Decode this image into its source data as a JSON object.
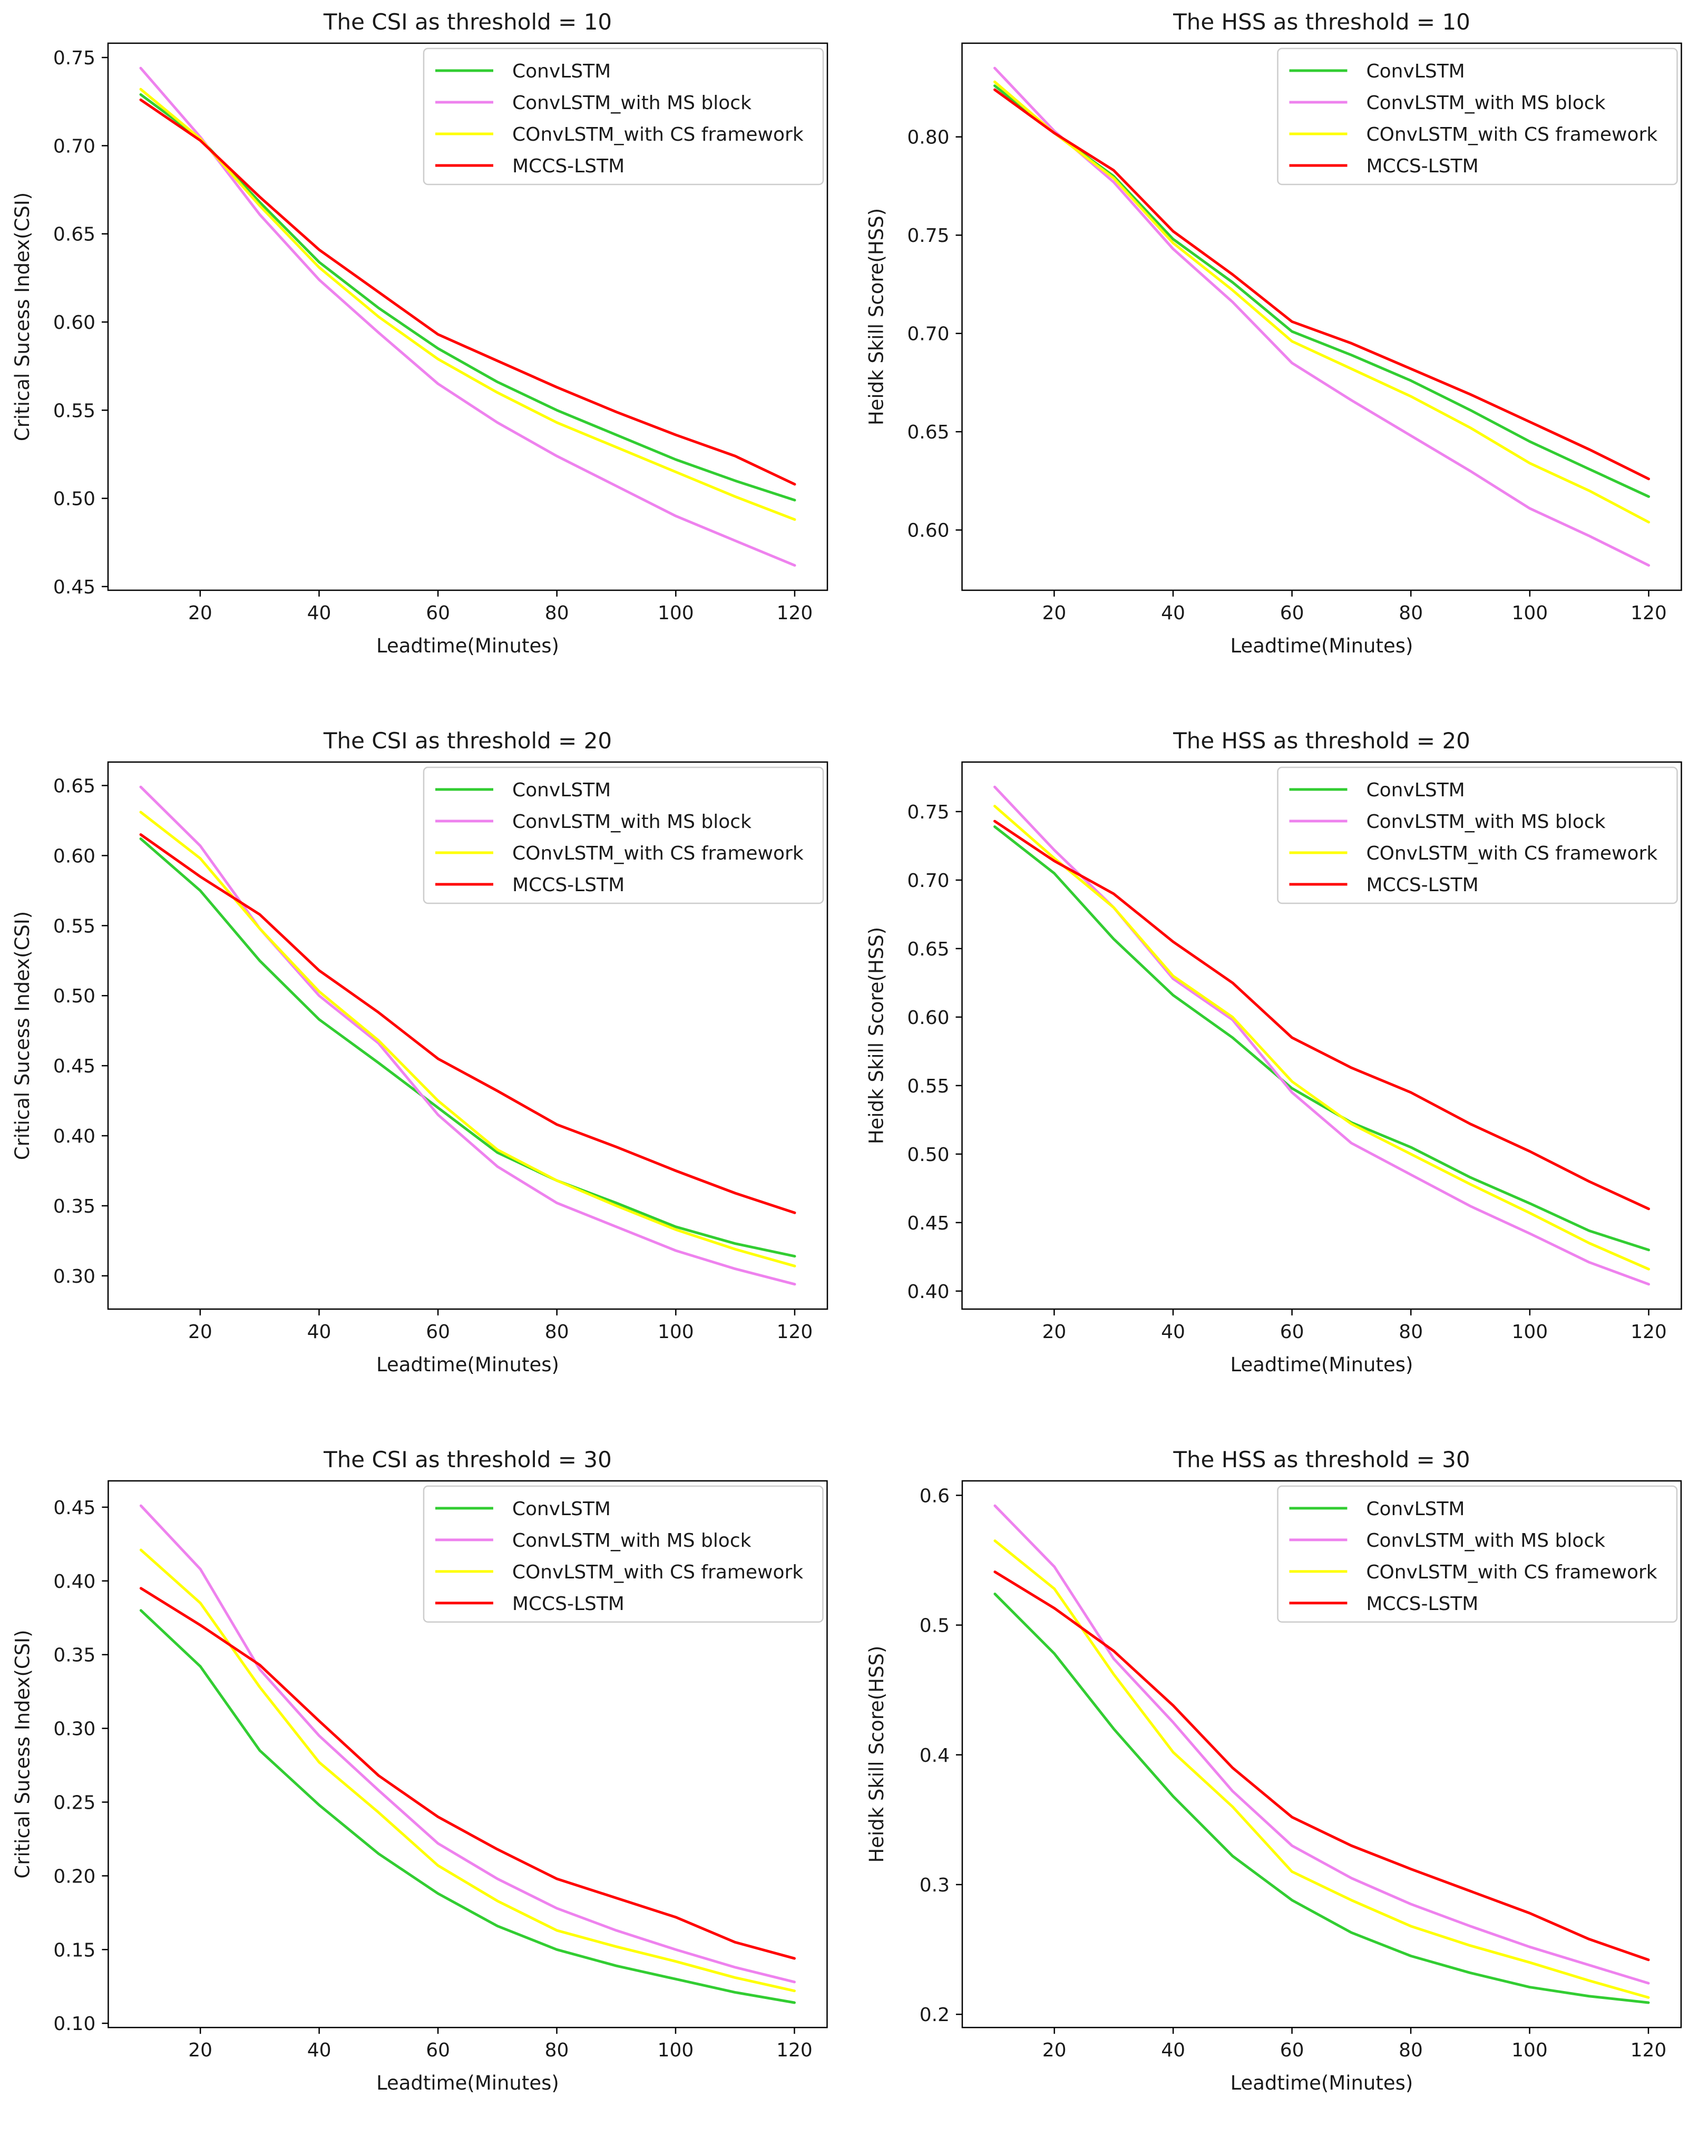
{
  "page": {
    "background": "#ffffff",
    "figure_type": "matplotlib-multipanel",
    "rows": 3,
    "cols": 2
  },
  "legend": {
    "position": "upper right",
    "entries": [
      {
        "label": "ConvLSTM",
        "color": "#32cd32"
      },
      {
        "label": "ConvLSTM_with MS block",
        "color": "#ee82ee"
      },
      {
        "label": "COnvLSTM_with CS framework",
        "color": "#ffff00"
      },
      {
        "label": "MCCS-LSTM",
        "color": "#ff0000"
      }
    ]
  },
  "chart_data": [
    {
      "type": "line",
      "title": "The CSI as threshold = 10",
      "xlabel": "Leadtime(Minutes)",
      "ylabel": "Critical Sucess Index(CSI)",
      "grid": false,
      "legend_position": "upper right",
      "x": [
        10,
        20,
        30,
        40,
        50,
        60,
        70,
        80,
        90,
        100,
        110,
        120
      ],
      "xticks": [
        20,
        40,
        60,
        80,
        100,
        120
      ],
      "xtick_labels": [
        "20",
        "40",
        "60",
        "80",
        "100",
        "120"
      ],
      "yticks": [
        0.45,
        0.5,
        0.55,
        0.6,
        0.65,
        0.7,
        0.75
      ],
      "ytick_labels": [
        "0.45",
        "0.50",
        "0.55",
        "0.60",
        "0.65",
        "0.70",
        "0.75"
      ],
      "series": [
        {
          "name": "ConvLSTM",
          "color": "#32cd32",
          "values": [
            0.729,
            0.704,
            0.668,
            0.634,
            0.608,
            0.585,
            0.566,
            0.55,
            0.536,
            0.522,
            0.51,
            0.499
          ]
        },
        {
          "name": "ConvLSTM_with MS block",
          "color": "#ee82ee",
          "values": [
            0.744,
            0.705,
            0.661,
            0.624,
            0.594,
            0.565,
            0.543,
            0.524,
            0.507,
            0.49,
            0.476,
            0.462
          ]
        },
        {
          "name": "COnvLSTM_with CS framework",
          "color": "#ffff00",
          "values": [
            0.732,
            0.704,
            0.666,
            0.631,
            0.603,
            0.579,
            0.56,
            0.543,
            0.529,
            0.515,
            0.501,
            0.488
          ]
        },
        {
          "name": "MCCS-LSTM",
          "color": "#ff0000",
          "values": [
            0.726,
            0.703,
            0.671,
            0.641,
            0.617,
            0.593,
            0.578,
            0.563,
            0.549,
            0.536,
            0.524,
            0.508
          ]
        }
      ]
    },
    {
      "type": "line",
      "title": "The HSS as threshold = 10",
      "xlabel": "Leadtime(Minutes)",
      "ylabel": "Heidk Skill Score(HSS)",
      "grid": false,
      "legend_position": "upper right",
      "x": [
        10,
        20,
        30,
        40,
        50,
        60,
        70,
        80,
        90,
        100,
        110,
        120
      ],
      "xticks": [
        20,
        40,
        60,
        80,
        100,
        120
      ],
      "xtick_labels": [
        "20",
        "40",
        "60",
        "80",
        "100",
        "120"
      ],
      "yticks": [
        0.6,
        0.65,
        0.7,
        0.75,
        0.8
      ],
      "ytick_labels": [
        "0.60",
        "0.65",
        "0.70",
        "0.75",
        "0.80"
      ],
      "series": [
        {
          "name": "ConvLSTM",
          "color": "#32cd32",
          "values": [
            0.826,
            0.802,
            0.78,
            0.748,
            0.726,
            0.701,
            0.689,
            0.676,
            0.661,
            0.645,
            0.631,
            0.617
          ]
        },
        {
          "name": "ConvLSTM_with MS block",
          "color": "#ee82ee",
          "values": [
            0.835,
            0.803,
            0.777,
            0.743,
            0.716,
            0.685,
            0.666,
            0.648,
            0.63,
            0.611,
            0.597,
            0.582
          ]
        },
        {
          "name": "COnvLSTM_with CS framework",
          "color": "#ffff00",
          "values": [
            0.828,
            0.802,
            0.779,
            0.746,
            0.722,
            0.696,
            0.682,
            0.668,
            0.652,
            0.634,
            0.62,
            0.604
          ]
        },
        {
          "name": "MCCS-LSTM",
          "color": "#ff0000",
          "values": [
            0.824,
            0.802,
            0.783,
            0.752,
            0.73,
            0.706,
            0.695,
            0.682,
            0.669,
            0.655,
            0.641,
            0.626
          ]
        }
      ]
    },
    {
      "type": "line",
      "title": "The CSI as threshold = 20",
      "xlabel": "Leadtime(Minutes)",
      "ylabel": "Critical Sucess Index(CSI)",
      "grid": false,
      "legend_position": "upper right",
      "x": [
        10,
        20,
        30,
        40,
        50,
        60,
        70,
        80,
        90,
        100,
        110,
        120
      ],
      "xticks": [
        20,
        40,
        60,
        80,
        100,
        120
      ],
      "xtick_labels": [
        "20",
        "40",
        "60",
        "80",
        "100",
        "120"
      ],
      "yticks": [
        0.3,
        0.35,
        0.4,
        0.45,
        0.5,
        0.55,
        0.6,
        0.65
      ],
      "ytick_labels": [
        "0.30",
        "0.35",
        "0.40",
        "0.45",
        "0.50",
        "0.55",
        "0.60",
        "0.65"
      ],
      "series": [
        {
          "name": "ConvLSTM",
          "color": "#32cd32",
          "values": [
            0.612,
            0.575,
            0.525,
            0.483,
            0.452,
            0.42,
            0.388,
            0.368,
            0.352,
            0.335,
            0.323,
            0.314
          ]
        },
        {
          "name": "ConvLSTM_with MS block",
          "color": "#ee82ee",
          "values": [
            0.649,
            0.607,
            0.548,
            0.5,
            0.466,
            0.415,
            0.378,
            0.352,
            0.335,
            0.318,
            0.305,
            0.294
          ]
        },
        {
          "name": "COnvLSTM_with CS framework",
          "color": "#ffff00",
          "values": [
            0.631,
            0.598,
            0.548,
            0.503,
            0.468,
            0.425,
            0.39,
            0.368,
            0.35,
            0.333,
            0.319,
            0.307
          ]
        },
        {
          "name": "MCCS-LSTM",
          "color": "#ff0000",
          "values": [
            0.615,
            0.585,
            0.558,
            0.518,
            0.488,
            0.455,
            0.432,
            0.408,
            0.392,
            0.375,
            0.359,
            0.345
          ]
        }
      ]
    },
    {
      "type": "line",
      "title": "The HSS as threshold = 20",
      "xlabel": "Leadtime(Minutes)",
      "ylabel": "Heidk Skill Score(HSS)",
      "grid": false,
      "legend_position": "upper right",
      "x": [
        10,
        20,
        30,
        40,
        50,
        60,
        70,
        80,
        90,
        100,
        110,
        120
      ],
      "xticks": [
        20,
        40,
        60,
        80,
        100,
        120
      ],
      "xtick_labels": [
        "20",
        "40",
        "60",
        "80",
        "100",
        "120"
      ],
      "yticks": [
        0.4,
        0.45,
        0.5,
        0.55,
        0.6,
        0.65,
        0.7,
        0.75
      ],
      "ytick_labels": [
        "0.40",
        "0.45",
        "0.50",
        "0.55",
        "0.60",
        "0.65",
        "0.70",
        "0.75"
      ],
      "series": [
        {
          "name": "ConvLSTM",
          "color": "#32cd32",
          "values": [
            0.739,
            0.705,
            0.657,
            0.616,
            0.585,
            0.548,
            0.523,
            0.505,
            0.483,
            0.464,
            0.444,
            0.43
          ]
        },
        {
          "name": "ConvLSTM_with MS block",
          "color": "#ee82ee",
          "values": [
            0.768,
            0.722,
            0.68,
            0.628,
            0.598,
            0.545,
            0.508,
            0.485,
            0.462,
            0.442,
            0.421,
            0.405
          ]
        },
        {
          "name": "COnvLSTM_with CS framework",
          "color": "#ffff00",
          "values": [
            0.754,
            0.716,
            0.68,
            0.63,
            0.6,
            0.553,
            0.522,
            0.5,
            0.478,
            0.457,
            0.435,
            0.416
          ]
        },
        {
          "name": "MCCS-LSTM",
          "color": "#ff0000",
          "values": [
            0.743,
            0.714,
            0.69,
            0.655,
            0.625,
            0.585,
            0.563,
            0.545,
            0.522,
            0.502,
            0.48,
            0.46
          ]
        }
      ]
    },
    {
      "type": "line",
      "title": "The CSI as threshold = 30",
      "xlabel": "Leadtime(Minutes)",
      "ylabel": "Critical Sucess Index(CSI)",
      "grid": false,
      "legend_position": "upper right",
      "x": [
        10,
        20,
        30,
        40,
        50,
        60,
        70,
        80,
        90,
        100,
        110,
        120
      ],
      "xticks": [
        20,
        40,
        60,
        80,
        100,
        120
      ],
      "xtick_labels": [
        "20",
        "40",
        "60",
        "80",
        "100",
        "120"
      ],
      "yticks": [
        0.1,
        0.15,
        0.2,
        0.25,
        0.3,
        0.35,
        0.4,
        0.45
      ],
      "ytick_labels": [
        "0.10",
        "0.15",
        "0.20",
        "0.25",
        "0.30",
        "0.35",
        "0.40",
        "0.45"
      ],
      "series": [
        {
          "name": "ConvLSTM",
          "color": "#32cd32",
          "values": [
            0.38,
            0.342,
            0.285,
            0.248,
            0.215,
            0.188,
            0.166,
            0.15,
            0.139,
            0.13,
            0.121,
            0.114
          ]
        },
        {
          "name": "ConvLSTM_with MS block",
          "color": "#ee82ee",
          "values": [
            0.451,
            0.408,
            0.34,
            0.295,
            0.258,
            0.222,
            0.198,
            0.178,
            0.163,
            0.15,
            0.138,
            0.128
          ]
        },
        {
          "name": "COnvLSTM_with CS framework",
          "color": "#ffff00",
          "values": [
            0.421,
            0.385,
            0.328,
            0.277,
            0.243,
            0.207,
            0.183,
            0.163,
            0.152,
            0.142,
            0.131,
            0.122
          ]
        },
        {
          "name": "MCCS-LSTM",
          "color": "#ff0000",
          "values": [
            0.395,
            0.37,
            0.343,
            0.305,
            0.268,
            0.24,
            0.218,
            0.198,
            0.185,
            0.172,
            0.155,
            0.144
          ]
        }
      ]
    },
    {
      "type": "line",
      "title": "The HSS as threshold = 30",
      "xlabel": "Leadtime(Minutes)",
      "ylabel": "Heidk Skill Score(HSS)",
      "grid": false,
      "legend_position": "upper right",
      "x": [
        10,
        20,
        30,
        40,
        50,
        60,
        70,
        80,
        90,
        100,
        110,
        120
      ],
      "xticks": [
        20,
        40,
        60,
        80,
        100,
        120
      ],
      "xtick_labels": [
        "20",
        "40",
        "60",
        "80",
        "100",
        "120"
      ],
      "yticks": [
        0.2,
        0.3,
        0.4,
        0.5,
        0.6
      ],
      "ytick_labels": [
        "0.2",
        "0.3",
        "0.4",
        "0.5",
        "0.6"
      ],
      "series": [
        {
          "name": "ConvLSTM",
          "color": "#32cd32",
          "values": [
            0.524,
            0.478,
            0.42,
            0.368,
            0.322,
            0.288,
            0.263,
            0.245,
            0.232,
            0.221,
            0.214,
            0.209
          ]
        },
        {
          "name": "ConvLSTM_with MS block",
          "color": "#ee82ee",
          "values": [
            0.592,
            0.545,
            0.474,
            0.425,
            0.372,
            0.33,
            0.305,
            0.285,
            0.268,
            0.252,
            0.238,
            0.224
          ]
        },
        {
          "name": "COnvLSTM_with CS framework",
          "color": "#ffff00",
          "values": [
            0.565,
            0.528,
            0.462,
            0.402,
            0.36,
            0.31,
            0.288,
            0.268,
            0.253,
            0.24,
            0.226,
            0.213
          ]
        },
        {
          "name": "MCCS-LSTM",
          "color": "#ff0000",
          "values": [
            0.541,
            0.513,
            0.48,
            0.438,
            0.39,
            0.352,
            0.33,
            0.312,
            0.295,
            0.278,
            0.258,
            0.242
          ]
        }
      ]
    }
  ]
}
